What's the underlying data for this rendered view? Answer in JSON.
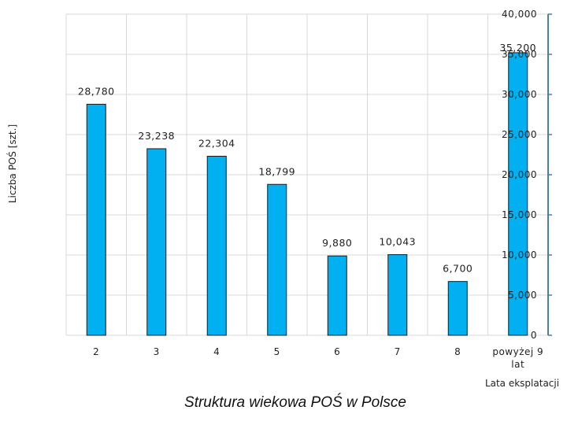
{
  "chart_data": {
    "type": "bar",
    "title": "Struktura wiekowa POŚ w Polsce",
    "xlabel": "Lata eksplatacji",
    "ylabel": "Liczba POŚ [szt.]",
    "categories": [
      "2",
      "3",
      "4",
      "5",
      "6",
      "7",
      "8",
      "powyżej 9 lat"
    ],
    "category_lines": [
      [
        "2"
      ],
      [
        "3"
      ],
      [
        "4"
      ],
      [
        "5"
      ],
      [
        "6"
      ],
      [
        "7"
      ],
      [
        "8"
      ],
      [
        "powyżej 9",
        "lat"
      ]
    ],
    "values": [
      28780,
      23238,
      22304,
      18799,
      9880,
      10043,
      6700,
      35200
    ],
    "data_labels": [
      "28,780",
      "23,238",
      "22,304",
      "18,799",
      "9,880",
      "10,043",
      "6,700",
      "35,200"
    ],
    "ylim": [
      0,
      40000
    ],
    "yticks": [
      0,
      5000,
      10000,
      15000,
      20000,
      25000,
      30000,
      35000,
      40000
    ],
    "ytick_labels": [
      "0",
      "5,000",
      "10,000",
      "15,000",
      "20,000",
      "25,000",
      "30,000",
      "35,000",
      "40,000"
    ],
    "y_axis_side": "right",
    "grid": true,
    "legend": "none",
    "colors": {
      "bar_fill": "#00b0f0",
      "bar_stroke": "#1a1a1a",
      "grid": "#d9d9d9",
      "axis": "#4a7fa7"
    }
  }
}
